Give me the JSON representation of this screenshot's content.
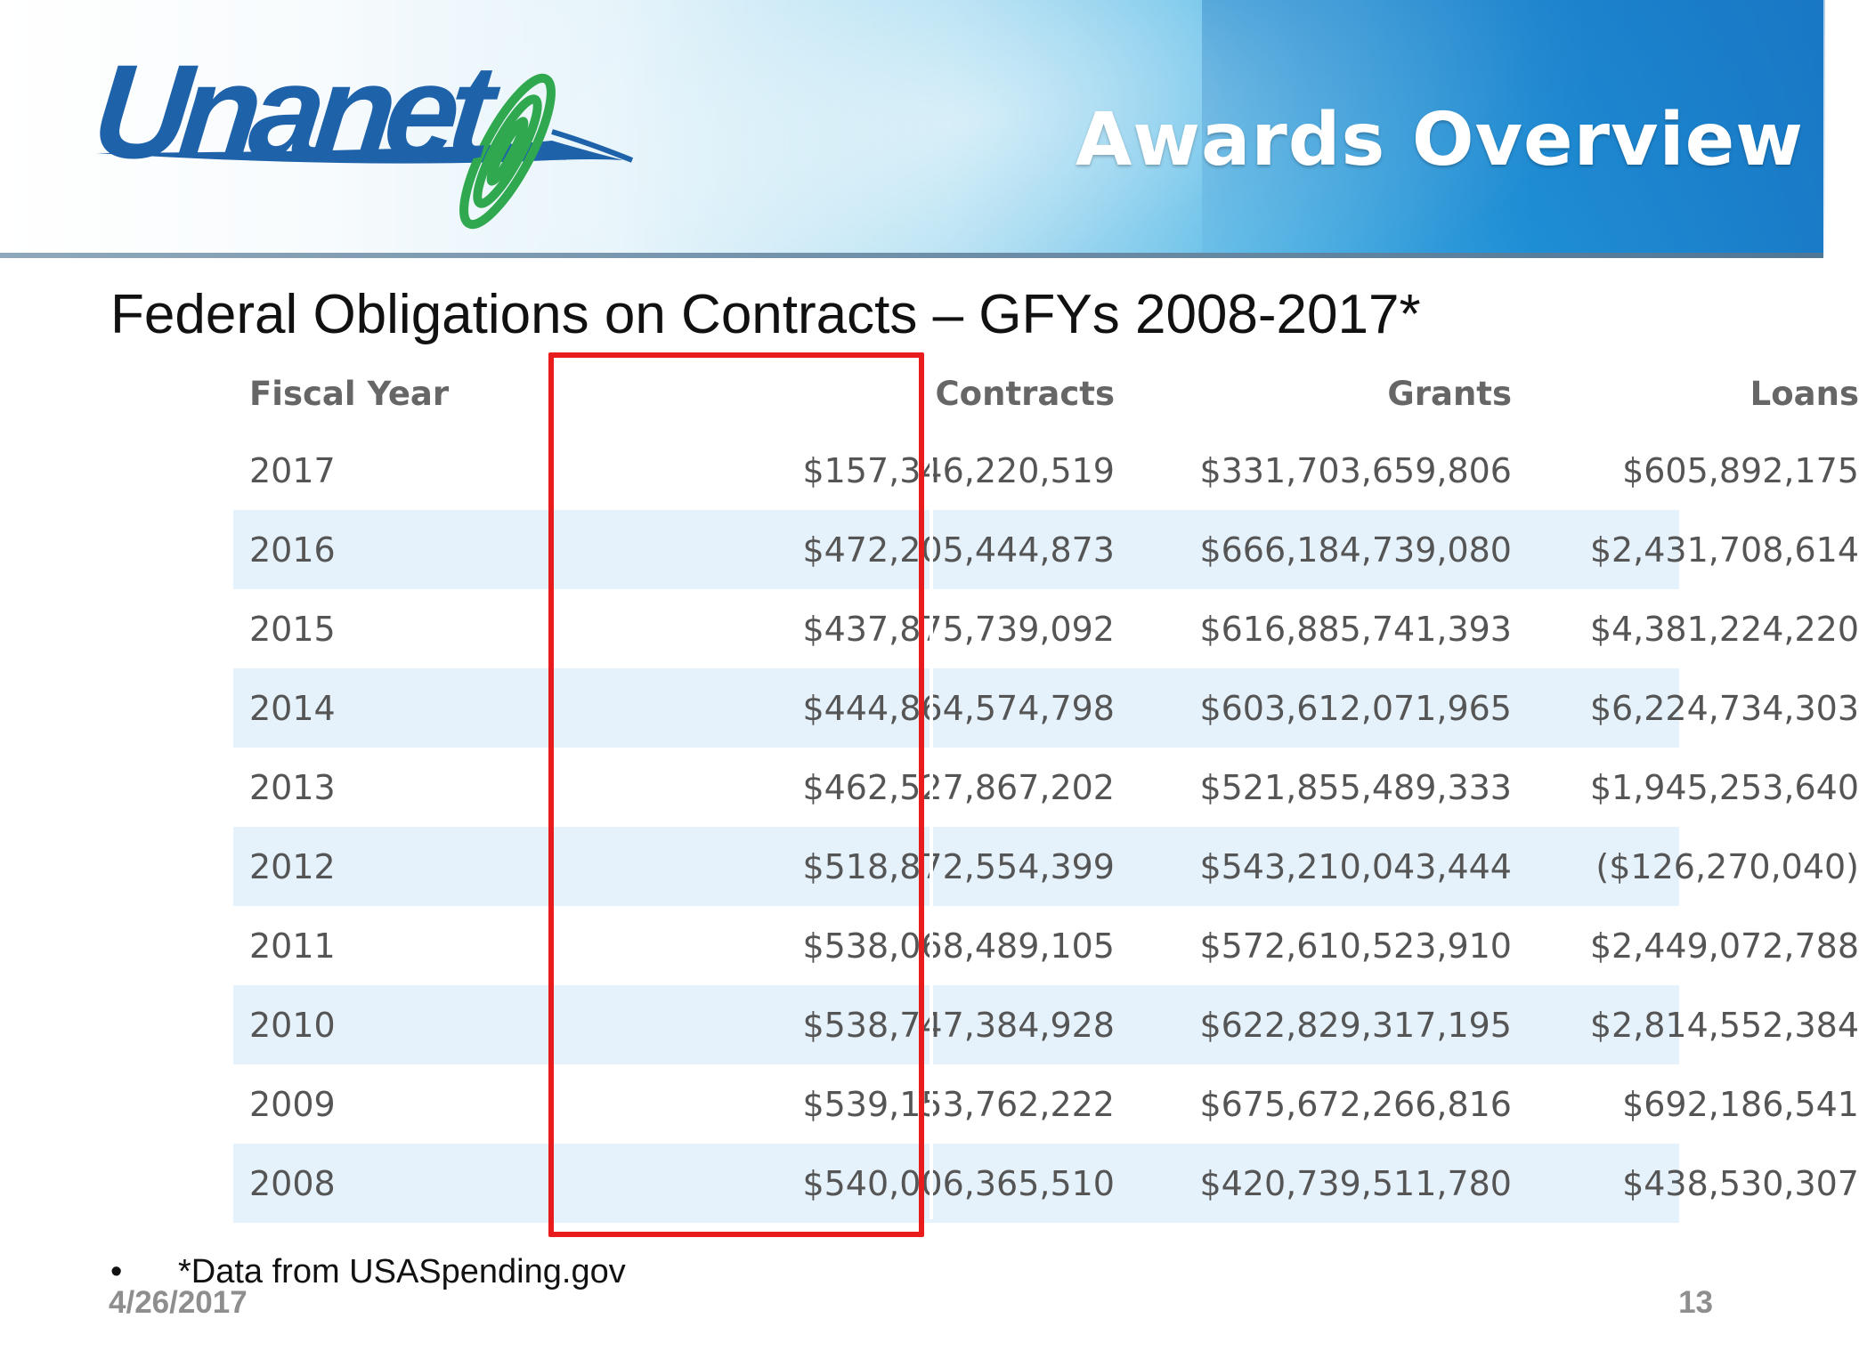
{
  "header": {
    "logo_text": "Unanet",
    "title": "Awards Overview",
    "colors": {
      "logo_blue": "#1e62aa",
      "logo_green": "#2fa84f",
      "banner_blue": "#1a7cc8"
    }
  },
  "subtitle": "Federal Obligations on Contracts – GFYs 2008-2017*",
  "table": {
    "headers": {
      "year": "Fiscal Year",
      "contracts": "Contracts",
      "grants": "Grants",
      "loans": "Loans"
    },
    "rows": [
      {
        "year": "2017",
        "contracts": "$157,346,220,519",
        "grants": "$331,703,659,806",
        "loans": "$605,892,175"
      },
      {
        "year": "2016",
        "contracts": "$472,205,444,873",
        "grants": "$666,184,739,080",
        "loans": "$2,431,708,614"
      },
      {
        "year": "2015",
        "contracts": "$437,875,739,092",
        "grants": "$616,885,741,393",
        "loans": "$4,381,224,220"
      },
      {
        "year": "2014",
        "contracts": "$444,864,574,798",
        "grants": "$603,612,071,965",
        "loans": "$6,224,734,303"
      },
      {
        "year": "2013",
        "contracts": "$462,527,867,202",
        "grants": "$521,855,489,333",
        "loans": "$1,945,253,640"
      },
      {
        "year": "2012",
        "contracts": "$518,872,554,399",
        "grants": "$543,210,043,444",
        "loans": "($126,270,040)"
      },
      {
        "year": "2011",
        "contracts": "$538,068,489,105",
        "grants": "$572,610,523,910",
        "loans": "$2,449,072,788"
      },
      {
        "year": "2010",
        "contracts": "$538,747,384,928",
        "grants": "$622,829,317,195",
        "loans": "$2,814,552,384"
      },
      {
        "year": "2009",
        "contracts": "$539,153,762,222",
        "grants": "$675,672,266,816",
        "loans": "$692,186,541"
      },
      {
        "year": "2008",
        "contracts": "$540,006,365,510",
        "grants": "$420,739,511,780",
        "loans": "$438,530,307"
      }
    ],
    "highlight_color": "#e81c1c",
    "alt_row_color": "#e6f2fb"
  },
  "footer": {
    "bullet": "•",
    "note": "*Data from USASpending.gov",
    "date": "4/26/2017",
    "page": "13"
  }
}
